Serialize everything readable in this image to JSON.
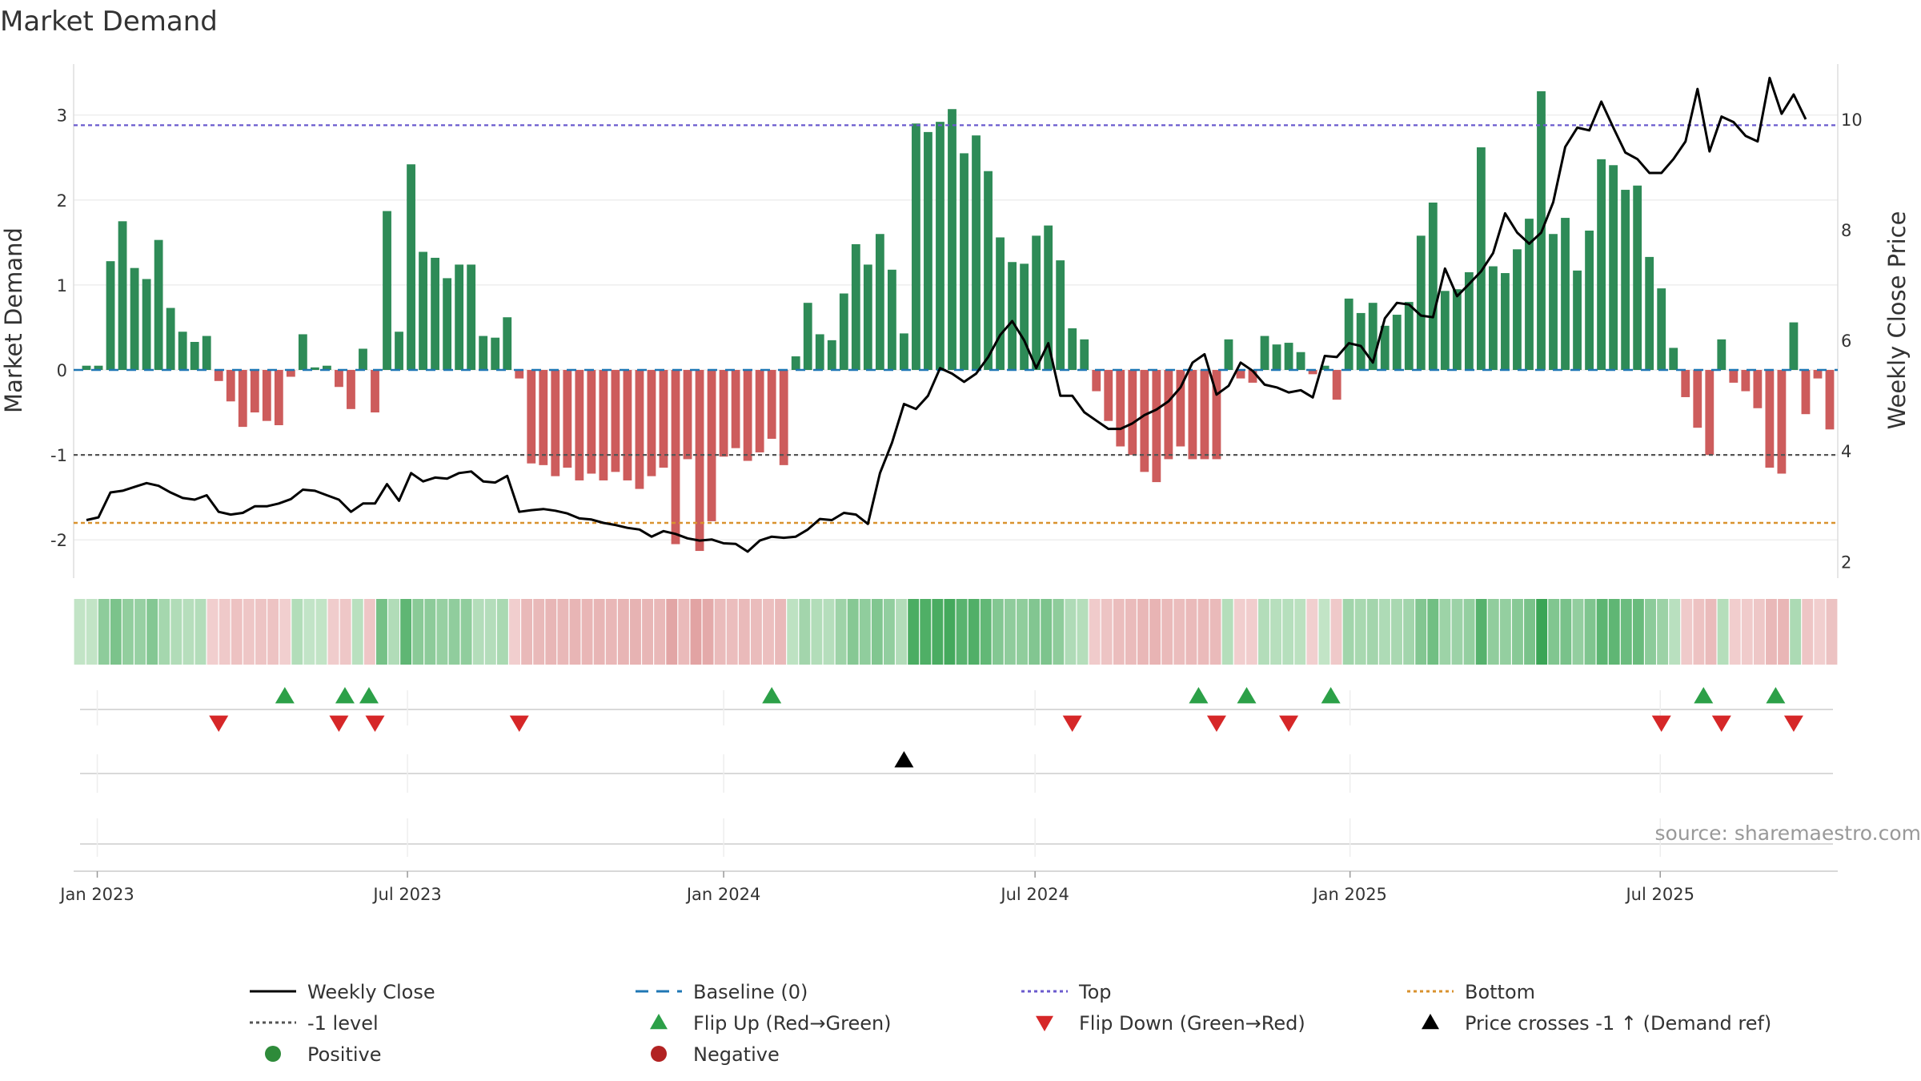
{
  "chart_data": {
    "type": "bar",
    "title": "Market Demand",
    "ylabel": "Market Demand",
    "y2label": "Weekly Close Price",
    "ylim": [
      -2.45,
      3.6
    ],
    "y2lim": [
      1.7,
      11.0
    ],
    "yticks": [
      -2,
      -1,
      0,
      1,
      2,
      3
    ],
    "y2ticks": [
      2,
      4,
      6,
      8,
      10
    ],
    "x_start": "2022-12-26",
    "x_step_days": 7,
    "xticks": [
      {
        "label": "Jan 2023",
        "week": 0.9
      },
      {
        "label": "Jul 2023",
        "week": 26.7
      },
      {
        "label": "Jan 2024",
        "week": 53.0
      },
      {
        "label": "Jul 2024",
        "week": 78.9
      },
      {
        "label": "Jan 2025",
        "week": 105.1
      },
      {
        "label": "Jul 2025",
        "week": 130.9
      }
    ],
    "top_level": 2.88,
    "minus_one_level": -1,
    "bottom_level": -1.8,
    "demand": [
      0.05,
      0.05,
      1.28,
      1.75,
      1.2,
      1.07,
      1.53,
      0.73,
      0.45,
      0.33,
      0.4,
      -0.13,
      -0.37,
      -0.67,
      -0.5,
      -0.6,
      -0.65,
      -0.08,
      0.42,
      0.03,
      0.05,
      -0.2,
      -0.46,
      0.25,
      -0.5,
      1.87,
      0.45,
      2.42,
      1.39,
      1.32,
      1.08,
      1.24,
      1.24,
      0.4,
      0.38,
      0.62,
      -0.1,
      -1.1,
      -1.12,
      -1.25,
      -1.15,
      -1.3,
      -1.22,
      -1.3,
      -1.2,
      -1.3,
      -1.4,
      -1.25,
      -1.15,
      -2.05,
      -1.05,
      -2.13,
      -1.78,
      -1.02,
      -0.92,
      -1.07,
      -0.97,
      -0.81,
      -1.12,
      0.16,
      0.79,
      0.42,
      0.35,
      0.9,
      1.48,
      1.24,
      1.6,
      1.18,
      0.43,
      2.9,
      2.8,
      2.92,
      3.07,
      2.55,
      2.76,
      2.34,
      1.56,
      1.27,
      1.25,
      1.58,
      1.7,
      1.29,
      0.49,
      0.36,
      -0.25,
      -0.6,
      -0.9,
      -1.0,
      -1.2,
      -1.32,
      -1.05,
      -0.9,
      -1.05,
      -1.05,
      -1.05,
      0.36,
      -0.1,
      -0.15,
      0.4,
      0.3,
      0.32,
      0.21,
      -0.05,
      0.05,
      -0.35,
      0.84,
      0.67,
      0.79,
      0.52,
      0.65,
      0.8,
      1.58,
      1.97,
      0.93,
      0.95,
      1.15,
      2.62,
      1.22,
      1.14,
      1.42,
      1.78,
      3.28,
      1.6,
      1.79,
      1.17,
      1.64,
      2.48,
      2.41,
      2.12,
      2.17,
      1.33,
      0.96,
      0.26,
      -0.32,
      -0.68,
      -1.0,
      0.36,
      -0.15,
      -0.25,
      -0.45,
      -1.15,
      -1.22,
      0.56,
      -0.52,
      -0.1,
      -0.7
    ],
    "price": [
      2.75,
      2.8,
      3.25,
      3.28,
      3.35,
      3.42,
      3.37,
      3.25,
      3.15,
      3.12,
      3.2,
      2.9,
      2.85,
      2.88,
      3.0,
      3.0,
      3.05,
      3.13,
      3.3,
      3.28,
      3.2,
      3.12,
      2.9,
      3.05,
      3.05,
      3.4,
      3.1,
      3.6,
      3.45,
      3.52,
      3.5,
      3.6,
      3.63,
      3.45,
      3.43,
      3.55,
      2.9,
      2.93,
      2.95,
      2.92,
      2.87,
      2.78,
      2.76,
      2.7,
      2.66,
      2.61,
      2.58,
      2.45,
      2.55,
      2.5,
      2.42,
      2.38,
      2.4,
      2.33,
      2.32,
      2.18,
      2.38,
      2.45,
      2.43,
      2.45,
      2.58,
      2.77,
      2.75,
      2.88,
      2.85,
      2.68,
      3.6,
      4.15,
      4.85,
      4.76,
      5.0,
      5.5,
      5.4,
      5.25,
      5.4,
      5.7,
      6.1,
      6.35,
      6.0,
      5.5,
      5.95,
      5.0,
      5.0,
      4.7,
      4.55,
      4.4,
      4.4,
      4.5,
      4.65,
      4.75,
      4.9,
      5.15,
      5.6,
      5.75,
      5.02,
      5.18,
      5.6,
      5.45,
      5.2,
      5.15,
      5.06,
      5.1,
      4.97,
      5.72,
      5.7,
      5.95,
      5.9,
      5.6,
      6.4,
      6.68,
      6.65,
      6.45,
      6.42,
      7.3,
      6.8,
      7.02,
      7.25,
      7.58,
      8.3,
      7.95,
      7.75,
      7.95,
      8.5,
      9.5,
      9.85,
      9.8,
      10.32,
      9.85,
      9.4,
      9.28,
      9.03,
      9.03,
      9.28,
      9.6,
      10.55,
      9.42,
      10.05,
      9.95,
      9.7,
      9.6,
      10.75,
      10.1,
      10.45,
      10.0
    ],
    "flip_up_weeks": [
      16.5,
      21.5,
      23.5,
      57.0,
      92.5,
      96.5,
      103.5,
      134.5,
      140.5
    ],
    "flip_down_weeks": [
      11.0,
      21.0,
      24.0,
      36.0,
      82.0,
      94.0,
      100.0,
      131.0,
      136.0,
      142.0
    ],
    "price_cross_weeks": [
      68.0
    ],
    "source": "source: sharemaestro.com",
    "legend": [
      {
        "label": "Weekly Close",
        "style": "solid-line",
        "color": "#000000"
      },
      {
        "label": "Baseline (0)",
        "style": "dash-line",
        "color": "#1f77b4"
      },
      {
        "label": "Top",
        "style": "dot-line",
        "color": "#6a5acd"
      },
      {
        "label": "Bottom",
        "style": "dot-line",
        "color": "#d9922e"
      },
      {
        "label": "-1 level",
        "style": "dot-line",
        "color": "#555555"
      },
      {
        "label": "Flip Up (Red→Green)",
        "style": "triangle-up",
        "color": "#2ca048"
      },
      {
        "label": "Flip Down (Green→Red)",
        "style": "triangle-down",
        "color": "#d62728"
      },
      {
        "label": "Price crosses -1 ↑ (Demand ref)",
        "style": "triangle-up",
        "color": "#000000"
      },
      {
        "label": "Positive",
        "style": "circle",
        "color": "#2e8b3a"
      },
      {
        "label": "Negative",
        "style": "circle",
        "color": "#b22222"
      }
    ],
    "colors": {
      "positive": "#2e8b57",
      "negative": "#cd5c5c",
      "price": "#000000",
      "baseline": "#1f77b4",
      "top": "#6a5acd",
      "minus_one": "#555555",
      "bottom": "#d9922e",
      "flip_up": "#2ca048",
      "flip_down": "#d62728"
    }
  }
}
